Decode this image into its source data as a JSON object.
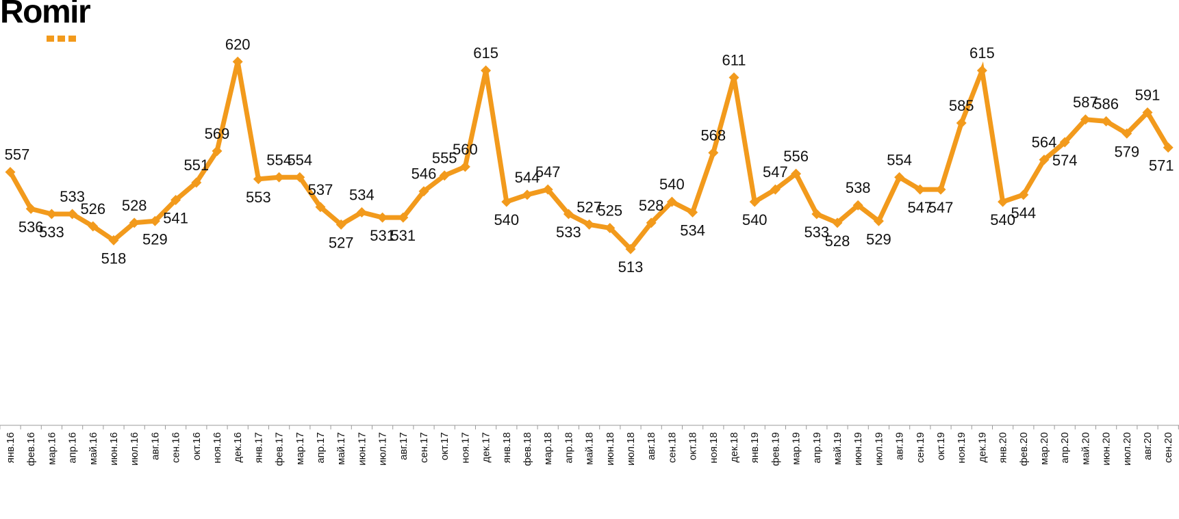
{
  "logo": {
    "text": "Romir"
  },
  "colors": {
    "line": "#f29a1c",
    "marker": "#f29a1c",
    "axis": "#999999",
    "text": "#111111"
  },
  "chart_data": {
    "type": "line",
    "title": "",
    "xlabel": "",
    "ylabel": "",
    "ylim": [
      450,
      630
    ],
    "grid": false,
    "legend": "none",
    "categories": [
      "янв.16",
      "фев.16",
      "мар.16",
      "апр.16",
      "май.16",
      "июн.16",
      "июл.16",
      "авг.16",
      "сен.16",
      "окт.16",
      "ноя.16",
      "дек.16",
      "янв.17",
      "фев.17",
      "мар.17",
      "апр.17",
      "май.17",
      "июн.17",
      "июл.17",
      "авг.17",
      "сен.17",
      "окт.17",
      "ноя.17",
      "дек.17",
      "янв.18",
      "фев.18",
      "мар.18",
      "апр.18",
      "май.18",
      "июн.18",
      "июл.18",
      "авг.18",
      "сен.18",
      "окт.18",
      "ноя.18",
      "дек.18",
      "янв.19",
      "фев.19",
      "мар.19",
      "апр.19",
      "май.19",
      "июн.19",
      "июл.19",
      "авг.19",
      "сен.19",
      "окт.19",
      "ноя.19",
      "дек.19",
      "янв.20",
      "фев.20",
      "мар.20",
      "апр.20",
      "май.20",
      "июн.20",
      "июл.20",
      "авг.20",
      "сен.20"
    ],
    "values": [
      557,
      536,
      533,
      533,
      526,
      518,
      528,
      529,
      541,
      551,
      569,
      620,
      553,
      554,
      554,
      537,
      527,
      534,
      531,
      531,
      546,
      555,
      560,
      615,
      540,
      544,
      547,
      533,
      527,
      525,
      513,
      528,
      540,
      534,
      568,
      611,
      540,
      547,
      556,
      533,
      528,
      538,
      529,
      554,
      547,
      547,
      585,
      615,
      540,
      544,
      564,
      574,
      587,
      586,
      579,
      591,
      571
    ],
    "label_positions": [
      "above",
      "below",
      "below",
      "above",
      "above",
      "below",
      "above",
      "below",
      "below",
      "above",
      "above",
      "above",
      "below",
      "above",
      "above",
      "above",
      "below",
      "above",
      "below",
      "below",
      "above",
      "above",
      "above",
      "above",
      "below",
      "above",
      "above",
      "below",
      "above",
      "above",
      "below",
      "above",
      "above",
      "below",
      "above",
      "above",
      "below",
      "above",
      "above",
      "below",
      "below",
      "above",
      "below",
      "above",
      "below",
      "below",
      "above",
      "above",
      "below",
      "below",
      "above",
      "below",
      "above",
      "above",
      "below",
      "above",
      "below"
    ]
  }
}
